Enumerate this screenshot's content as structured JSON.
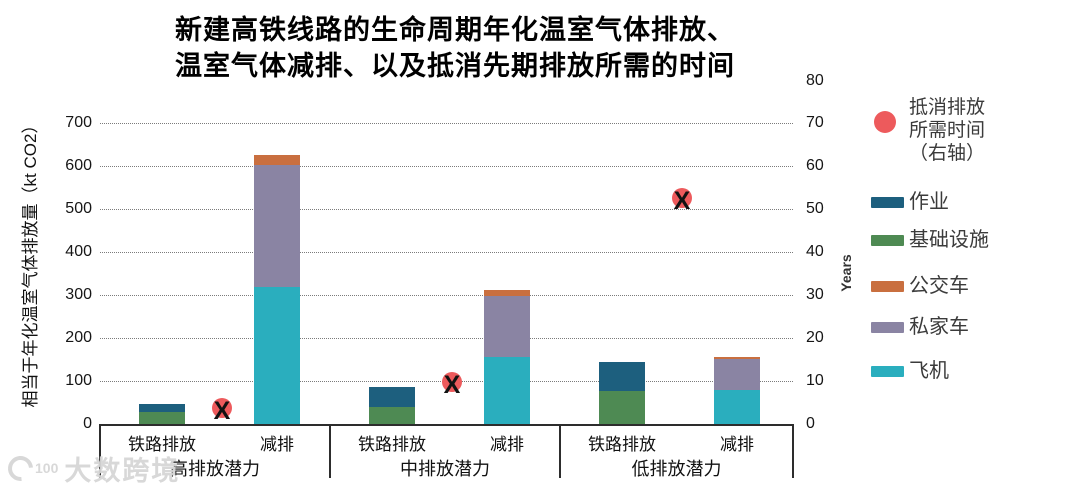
{
  "title": {
    "line1": "新建高铁线路的生命周期年化温室气体排放、",
    "line2": "温室气体减排、以及抵消先期排放所需的时间"
  },
  "watermark": {
    "logo_text": "100",
    "text": "大数跨境"
  },
  "chart_data": {
    "type": "bar",
    "stacked": true,
    "grid": "horizontal-dotted",
    "legend_position": "right",
    "left_axis": {
      "label": "相当于年化温室气体排放量（kt CO2）",
      "ticks": [
        0,
        100,
        200,
        300,
        400,
        500,
        600,
        700
      ],
      "range": [
        0,
        800
      ],
      "unit": "kt CO2"
    },
    "right_axis": {
      "label": "Years",
      "ticks": [
        0,
        10,
        20,
        30,
        40,
        50,
        60,
        70,
        80
      ],
      "range": [
        0,
        80
      ],
      "unit": "Years"
    },
    "series": [
      {
        "name": "作业",
        "color": "#1D5F7E"
      },
      {
        "name": "基础设施",
        "color": "#4E8A53"
      },
      {
        "name": "公交车",
        "color": "#C96F3F"
      },
      {
        "name": "私家车",
        "color": "#8A84A3"
      },
      {
        "name": "飞机",
        "color": "#2AAEBE"
      }
    ],
    "marker_series": {
      "name": "抵消排放所需时间（右轴）",
      "color": "#ED5A5C",
      "symbol": "X",
      "axis": "right"
    },
    "groups": [
      {
        "label": "高排放潜力",
        "offset_time_years": 3,
        "bars": [
          {
            "label": "铁路排放",
            "stack": [
              {
                "series": "基础设施",
                "value": 29
              },
              {
                "series": "作业",
                "value": 17
              }
            ]
          },
          {
            "label": "减排",
            "stack": [
              {
                "series": "飞机",
                "value": 320
              },
              {
                "series": "私家车",
                "value": 284
              },
              {
                "series": "公交车",
                "value": 23
              }
            ]
          }
        ]
      },
      {
        "label": "中排放潜力",
        "offset_time_years": 9,
        "bars": [
          {
            "label": "铁路排放",
            "stack": [
              {
                "series": "基础设施",
                "value": 39
              },
              {
                "series": "作业",
                "value": 48
              }
            ]
          },
          {
            "label": "减排",
            "stack": [
              {
                "series": "飞机",
                "value": 157
              },
              {
                "series": "私家车",
                "value": 140
              },
              {
                "series": "公交车",
                "value": 15
              }
            ]
          }
        ]
      },
      {
        "label": "低排放潜力",
        "offset_time_years": 52,
        "bars": [
          {
            "label": "铁路排放",
            "stack": [
              {
                "series": "基础设施",
                "value": 77
              },
              {
                "series": "作业",
                "value": 68
              }
            ]
          },
          {
            "label": "减排",
            "stack": [
              {
                "series": "飞机",
                "value": 79
              },
              {
                "series": "私家车",
                "value": 72
              },
              {
                "series": "公交车",
                "value": 4
              }
            ]
          }
        ]
      }
    ]
  },
  "legend": {
    "marker_item": {
      "label_lines": [
        "抵消排放",
        "所需时间",
        "（右轴）"
      ],
      "color": "#ED5A5C"
    },
    "items": [
      {
        "label": "作业",
        "color": "#1D5F7E"
      },
      {
        "label": "基础设施",
        "color": "#4E8A53"
      },
      {
        "label": "公交车",
        "color": "#C96F3F"
      },
      {
        "label": "私家车",
        "color": "#8A84A3"
      },
      {
        "label": "飞机",
        "color": "#2AAEBE"
      }
    ]
  }
}
